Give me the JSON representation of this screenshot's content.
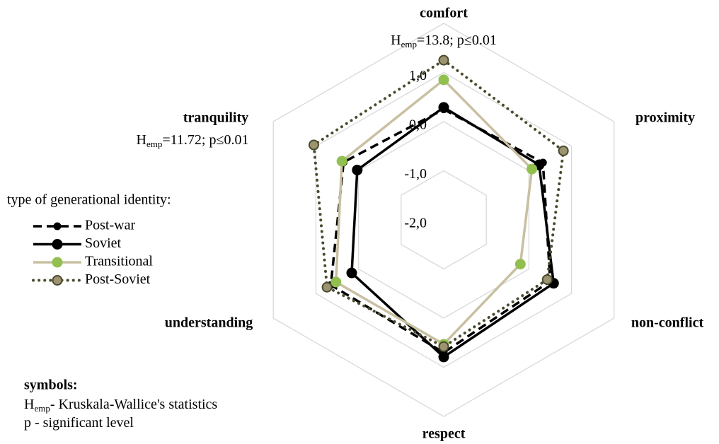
{
  "chart_data": {
    "type": "radar",
    "categories": [
      "comfort",
      "proximity",
      "non-conflict",
      "respect",
      "understanding",
      "tranquility"
    ],
    "category_annotations": [
      {
        "symbol": "H",
        "sub": "emp",
        "text": "=13.8; p≤0.01"
      },
      null,
      null,
      null,
      null,
      {
        "symbol": "H",
        "sub": "emp",
        "text": "=11.72; p≤0.01"
      }
    ],
    "ylim": [
      -2,
      2
    ],
    "yticks": [
      {
        "value": -2,
        "label": "-2,0"
      },
      {
        "value": -1,
        "label": "-1,0"
      },
      {
        "value": 0,
        "label": "0,0"
      },
      {
        "value": 1,
        "label": "1,0"
      },
      2
    ],
    "grid": true,
    "legend_title": "type of generational identity:",
    "series": [
      {
        "name": "Post-war",
        "color": "#000000",
        "line_style": "dashed",
        "marker_color": "#000000",
        "marker_size": "small",
        "values": [
          0.25,
          0.33,
          0.5,
          0.7,
          0.65,
          0.35
        ]
      },
      {
        "name": "Soviet",
        "color": "#000000",
        "line_style": "solid",
        "marker_color": "#000000",
        "marker_size": "large",
        "values": [
          0.29,
          0.24,
          0.58,
          0.79,
          0.16,
          0.03
        ]
      },
      {
        "name": "Transitional",
        "color": "#c9c0a2",
        "line_style": "solid",
        "marker_color": "#92c050",
        "marker_size": "large",
        "values": [
          0.85,
          0.07,
          -0.2,
          0.53,
          0.53,
          0.39
        ]
      },
      {
        "name": "Post-Soviet",
        "color": "#4a4a2e",
        "line_style": "dotted",
        "marker_color": "#9c9470",
        "marker_size": "large",
        "values": [
          1.25,
          0.81,
          0.43,
          0.58,
          0.74,
          1.05
        ]
      }
    ],
    "notes": {
      "title": "symbols:",
      "lines": [
        {
          "symbol": "H",
          "sub": "emp",
          "text": "- Kruskala-Wallice's statistics"
        },
        {
          "text": "p - significant level"
        }
      ]
    }
  }
}
